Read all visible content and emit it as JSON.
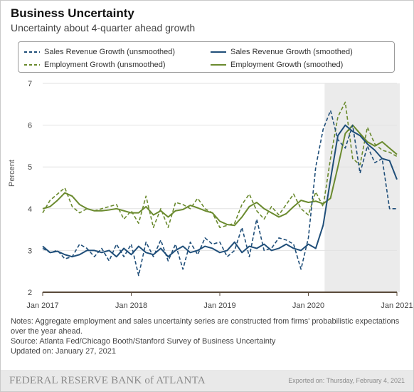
{
  "header": {
    "title": "Business Uncertainty",
    "subtitle": "Uncertainty about 4-quarter ahead growth"
  },
  "legend": {
    "items": [
      {
        "label": "Sales Revenue Growth (unsmoothed)",
        "color": "#1f4e79",
        "dashed": true
      },
      {
        "label": "Sales Revenue Growth (smoothed)",
        "color": "#1f4e79",
        "dashed": false
      },
      {
        "label": "Employment Growth (unsmoothed)",
        "color": "#6a8a2e",
        "dashed": true
      },
      {
        "label": "Employment Growth (smoothed)",
        "color": "#6a8a2e",
        "dashed": false
      }
    ]
  },
  "notes": {
    "line1": "Notes: Aggregate employment and sales uncertainty series are constructed from firms' probabilistic expectations over the year ahead.",
    "line2": "Source: Atlanta Fed/Chicago Booth/Stanford Survey of Business Uncertainty",
    "line3": "Updated on: January 27, 2021"
  },
  "footer": {
    "logo_text": "FEDERAL RESERVE BANK of ATLANTA",
    "exported": "Exported on: Thursday, February 4, 2021"
  },
  "chart_data": {
    "type": "line",
    "ylabel": "Percent",
    "xlabel": "",
    "ylim": [
      2,
      7
    ],
    "yticks": [
      "2",
      "3",
      "4",
      "5",
      "6",
      "7"
    ],
    "xticks": [
      {
        "label": "Jan 2017",
        "t": 0
      },
      {
        "label": "Jan 2018",
        "t": 12
      },
      {
        "label": "Jan 2019",
        "t": 24
      },
      {
        "label": "Jan 2020",
        "t": 36
      },
      {
        "label": "Jan 2021",
        "t": 48
      }
    ],
    "shaded_region": {
      "from": 38.2,
      "to": 48.5
    },
    "series": [
      {
        "name": "Employment Growth (unsmoothed)",
        "color": "#6a8a2e",
        "dashed": true,
        "values": [
          3.9,
          4.2,
          4.35,
          4.5,
          4.05,
          3.9,
          4.0,
          3.95,
          4.0,
          4.05,
          4.1,
          3.75,
          3.95,
          3.65,
          4.3,
          3.55,
          4.0,
          3.55,
          4.15,
          4.1,
          4.0,
          4.25,
          4.0,
          3.9,
          3.55,
          3.6,
          3.65,
          4.1,
          4.35,
          3.95,
          3.75,
          4.05,
          3.85,
          4.1,
          4.35,
          4.0,
          3.85,
          4.4,
          4.05,
          5.2,
          6.2,
          6.55,
          5.2,
          5.05,
          5.95,
          5.55,
          5.4,
          5.35,
          5.25
        ]
      },
      {
        "name": "Employment Growth (smoothed)",
        "color": "#6a8a2e",
        "dashed": false,
        "values": [
          4.0,
          4.05,
          4.2,
          4.38,
          4.3,
          4.1,
          4.0,
          3.95,
          3.95,
          3.97,
          4.0,
          3.95,
          3.9,
          3.9,
          4.05,
          3.85,
          3.95,
          3.8,
          3.95,
          3.98,
          4.08,
          4.02,
          3.95,
          3.9,
          3.7,
          3.62,
          3.6,
          3.8,
          4.05,
          4.15,
          4.0,
          3.9,
          3.8,
          3.88,
          4.05,
          4.2,
          4.15,
          4.18,
          4.12,
          4.25,
          5.0,
          5.8,
          6.0,
          5.8,
          5.6,
          5.5,
          5.6,
          5.45,
          5.3
        ]
      },
      {
        "name": "Sales Revenue Growth (unsmoothed)",
        "color": "#1f4e79",
        "dashed": true,
        "values": [
          3.05,
          2.95,
          3.0,
          2.8,
          2.85,
          3.15,
          3.05,
          2.85,
          3.05,
          2.75,
          3.15,
          2.85,
          3.15,
          2.4,
          3.2,
          2.85,
          3.25,
          2.75,
          3.15,
          2.55,
          3.2,
          2.9,
          3.3,
          3.15,
          3.2,
          2.85,
          3.0,
          3.55,
          2.85,
          3.75,
          3.0,
          3.05,
          3.3,
          3.25,
          3.15,
          2.55,
          3.3,
          5.0,
          5.9,
          6.35,
          5.65,
          5.45,
          6.0,
          4.85,
          5.5,
          5.1,
          5.2,
          4.0,
          4.0
        ]
      },
      {
        "name": "Sales Revenue Growth (smoothed)",
        "color": "#1f4e79",
        "dashed": false,
        "values": [
          3.1,
          2.95,
          2.98,
          2.9,
          2.85,
          2.9,
          3.0,
          3.0,
          2.95,
          3.0,
          2.85,
          3.05,
          2.9,
          3.1,
          2.95,
          2.9,
          3.05,
          2.85,
          3.0,
          3.1,
          2.95,
          3.0,
          3.1,
          3.05,
          2.95,
          3.0,
          3.2,
          2.95,
          3.1,
          3.05,
          3.15,
          3.0,
          3.05,
          3.15,
          3.05,
          3.0,
          3.15,
          3.05,
          3.6,
          4.7,
          5.75,
          6.0,
          5.85,
          5.75,
          5.55,
          5.4,
          5.2,
          5.15,
          4.7
        ]
      }
    ]
  }
}
